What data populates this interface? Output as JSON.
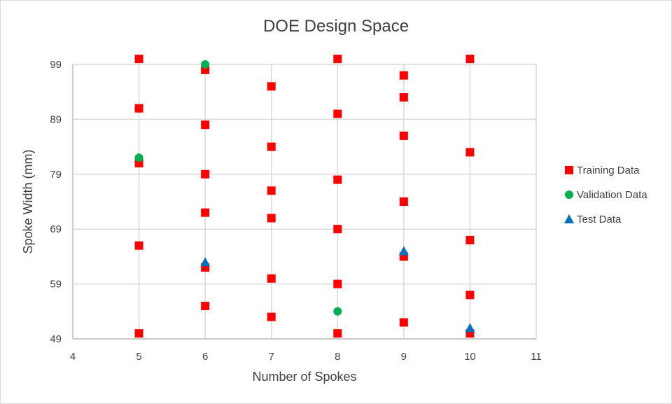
{
  "chart_data": {
    "type": "scatter",
    "title": "DOE Design Space",
    "xlabel": "Number of Spokes",
    "ylabel": "Spoke Width (mm)",
    "xlim": [
      4,
      11
    ],
    "ylim": [
      49,
      99
    ],
    "x_ticks": [
      "4",
      "5",
      "6",
      "7",
      "8",
      "9",
      "10",
      "11"
    ],
    "y_ticks": [
      "49",
      "59",
      "69",
      "79",
      "89",
      "99"
    ],
    "grid": "vertical-and-horizontal",
    "legend_position": "right",
    "series": [
      {
        "name": "Training Data",
        "marker": "square",
        "color": "#ff0000",
        "points": [
          {
            "x": 5,
            "y": 100
          },
          {
            "x": 5,
            "y": 91
          },
          {
            "x": 5,
            "y": 81
          },
          {
            "x": 5,
            "y": 66
          },
          {
            "x": 5,
            "y": 50
          },
          {
            "x": 6,
            "y": 98
          },
          {
            "x": 6,
            "y": 88
          },
          {
            "x": 6,
            "y": 79
          },
          {
            "x": 6,
            "y": 72
          },
          {
            "x": 6,
            "y": 62
          },
          {
            "x": 6,
            "y": 55
          },
          {
            "x": 7,
            "y": 95
          },
          {
            "x": 7,
            "y": 84
          },
          {
            "x": 7,
            "y": 76
          },
          {
            "x": 7,
            "y": 71
          },
          {
            "x": 7,
            "y": 60
          },
          {
            "x": 7,
            "y": 53
          },
          {
            "x": 8,
            "y": 100
          },
          {
            "x": 8,
            "y": 90
          },
          {
            "x": 8,
            "y": 78
          },
          {
            "x": 8,
            "y": 69
          },
          {
            "x": 8,
            "y": 59
          },
          {
            "x": 8,
            "y": 50
          },
          {
            "x": 9,
            "y": 97
          },
          {
            "x": 9,
            "y": 93
          },
          {
            "x": 9,
            "y": 86
          },
          {
            "x": 9,
            "y": 74
          },
          {
            "x": 9,
            "y": 64
          },
          {
            "x": 9,
            "y": 52
          },
          {
            "x": 10,
            "y": 100
          },
          {
            "x": 10,
            "y": 83
          },
          {
            "x": 10,
            "y": 67
          },
          {
            "x": 10,
            "y": 57
          },
          {
            "x": 10,
            "y": 50
          }
        ]
      },
      {
        "name": "Validation Data",
        "marker": "circle",
        "color": "#00b050",
        "points": [
          {
            "x": 5,
            "y": 82
          },
          {
            "x": 6,
            "y": 99
          },
          {
            "x": 8,
            "y": 54
          }
        ]
      },
      {
        "name": "Test Data",
        "marker": "triangle",
        "color": "#0070c0",
        "points": [
          {
            "x": 6,
            "y": 63
          },
          {
            "x": 9,
            "y": 65
          },
          {
            "x": 10,
            "y": 51
          }
        ]
      }
    ]
  }
}
